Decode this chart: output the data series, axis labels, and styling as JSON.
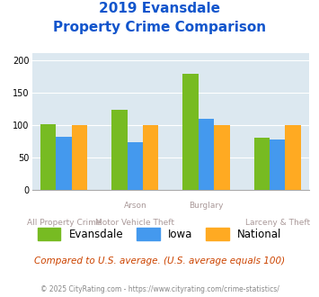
{
  "title_line1": "2019 Evansdale",
  "title_line2": "Property Crime Comparison",
  "cat_labels_top": [
    "",
    "Arson",
    "Burglary",
    ""
  ],
  "cat_labels_bot": [
    "All Property Crime",
    "Motor Vehicle Theft",
    "",
    "Larceny & Theft"
  ],
  "evansdale": [
    101,
    124,
    179,
    81
  ],
  "iowa": [
    82,
    74,
    109,
    78
  ],
  "national": [
    100,
    100,
    100,
    100
  ],
  "evansdale_color": "#77bb22",
  "iowa_color": "#4499ee",
  "national_color": "#ffaa22",
  "ylim": [
    0,
    210
  ],
  "yticks": [
    0,
    50,
    100,
    150,
    200
  ],
  "bg_color": "#dce8f0",
  "legend_labels": [
    "Evansdale",
    "Iowa",
    "National"
  ],
  "footnote1": "Compared to U.S. average. (U.S. average equals 100)",
  "footnote2": "© 2025 CityRating.com - https://www.cityrating.com/crime-statistics/",
  "title_color": "#1155cc",
  "footnote1_color": "#cc4400",
  "footnote2_color": "#888888",
  "grid_color": "#ffffff",
  "spine_color": "#aaaaaa",
  "xlabel_color": "#aa9999"
}
